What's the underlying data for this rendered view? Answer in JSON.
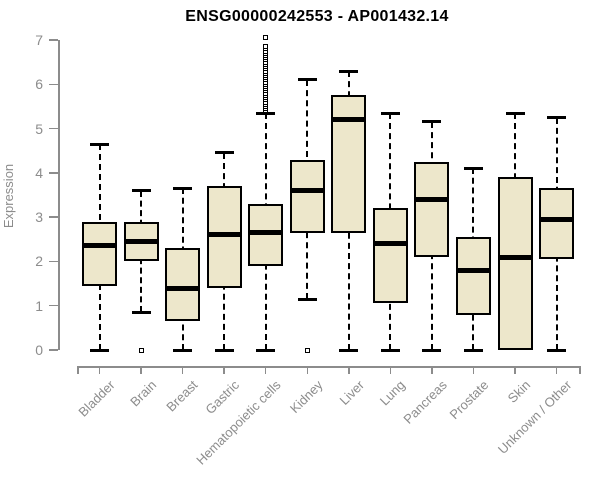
{
  "page": {
    "background": "#ffffff"
  },
  "chart_data": {
    "type": "boxplot",
    "title": "ENSG00000242553 - AP001432.14",
    "xlabel": "",
    "ylabel": "Expression",
    "ylim": [
      0,
      7
    ],
    "y_ticks": [
      0,
      1,
      2,
      3,
      4,
      5,
      6,
      7
    ],
    "grid": false,
    "legend": "none",
    "categories": [
      "Bladder",
      "Brain",
      "Breast",
      "Gastric",
      "Hematopoietic cells",
      "Kidney",
      "Liver",
      "Lung",
      "Pancreas",
      "Prostate",
      "Skin",
      "Unknown / Other"
    ],
    "series": [
      {
        "name": "Bladder",
        "whisker_low": 0,
        "q1": 1.45,
        "median": 2.35,
        "q3": 2.9,
        "whisker_high": 4.65,
        "outliers": []
      },
      {
        "name": "Brain",
        "whisker_low": 0.85,
        "q1": 2.0,
        "median": 2.45,
        "q3": 2.9,
        "whisker_high": 3.6,
        "outliers": [
          0
        ]
      },
      {
        "name": "Breast",
        "whisker_low": 0,
        "q1": 0.65,
        "median": 1.4,
        "q3": 2.3,
        "whisker_high": 3.65,
        "outliers": []
      },
      {
        "name": "Gastric",
        "whisker_low": 0,
        "q1": 1.4,
        "median": 2.6,
        "q3": 3.7,
        "whisker_high": 4.45,
        "outliers": []
      },
      {
        "name": "Hematopoietic cells",
        "whisker_low": 0,
        "q1": 1.9,
        "median": 2.65,
        "q3": 3.3,
        "whisker_high": 5.35,
        "outliers": [
          5.4,
          5.45,
          5.5,
          5.55,
          5.6,
          5.65,
          5.7,
          5.75,
          5.8,
          5.85,
          5.9,
          5.95,
          6.0,
          6.05,
          6.1,
          6.15,
          6.2,
          6.25,
          6.3,
          6.35,
          6.4,
          6.45,
          6.5,
          6.55,
          6.6,
          6.65,
          6.7,
          6.75,
          6.8,
          6.85,
          7.05
        ]
      },
      {
        "name": "Kidney",
        "whisker_low": 1.15,
        "q1": 2.65,
        "median": 3.6,
        "q3": 4.3,
        "whisker_high": 6.1,
        "outliers": [
          0
        ]
      },
      {
        "name": "Liver",
        "whisker_low": 0,
        "q1": 2.65,
        "median": 5.2,
        "q3": 5.75,
        "whisker_high": 6.3,
        "outliers": []
      },
      {
        "name": "Lung",
        "whisker_low": 0,
        "q1": 1.05,
        "median": 2.4,
        "q3": 3.2,
        "whisker_high": 5.35,
        "outliers": []
      },
      {
        "name": "Pancreas",
        "whisker_low": 0,
        "q1": 2.1,
        "median": 3.4,
        "q3": 4.25,
        "whisker_high": 5.15,
        "outliers": []
      },
      {
        "name": "Prostate",
        "whisker_low": 0,
        "q1": 0.8,
        "median": 1.8,
        "q3": 2.55,
        "whisker_high": 4.1,
        "outliers": []
      },
      {
        "name": "Skin",
        "whisker_low": 0,
        "q1": 0,
        "median": 2.1,
        "q3": 3.9,
        "whisker_high": 5.35,
        "outliers": []
      },
      {
        "name": "Unknown / Other",
        "whisker_low": 0,
        "q1": 2.05,
        "median": 2.95,
        "q3": 3.65,
        "whisker_high": 5.25,
        "outliers": []
      }
    ],
    "colors": {
      "box_fill": "#EDE7CB",
      "box_border": "#000000",
      "median": "#000000",
      "whisker": "#000000",
      "axis": "#8C8C8C",
      "tick_label": "#8C8C8C",
      "title": "#000000"
    }
  }
}
